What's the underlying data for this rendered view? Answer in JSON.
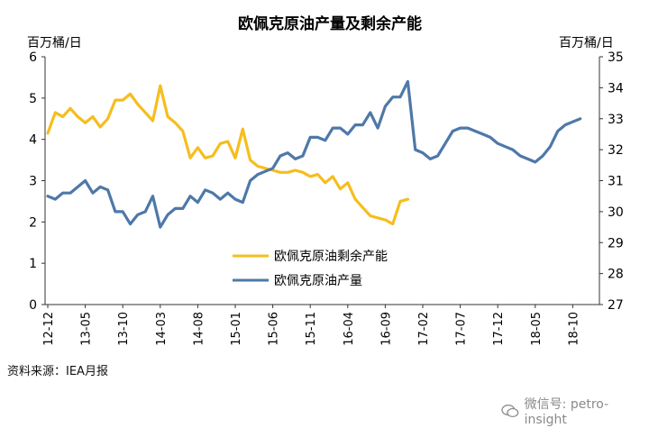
{
  "chart_data": {
    "type": "line",
    "title": "欧佩克原油产量及剩余产能",
    "left_axis_unit": "百万桶/日",
    "right_axis_unit": "百万桶/日",
    "left_ylim": [
      0,
      6
    ],
    "right_ylim": [
      27,
      35
    ],
    "left_ticks": [
      "0",
      "1",
      "2",
      "3",
      "4",
      "5",
      "6"
    ],
    "right_ticks": [
      "27",
      "28",
      "29",
      "30",
      "31",
      "32",
      "33",
      "34",
      "35"
    ],
    "x_tick_labels": [
      "12-12",
      "13-05",
      "13-10",
      "14-03",
      "14-08",
      "15-01",
      "15-06",
      "15-11",
      "16-04",
      "16-09",
      "17-02",
      "17-07",
      "17-12",
      "18-05",
      "18-10"
    ],
    "grid": false,
    "legend_position": "center",
    "series": [
      {
        "name": "欧佩克原油剩余产能",
        "axis": "left",
        "color": "#F5BE1E",
        "start_month_index": 0,
        "values": [
          4.15,
          4.65,
          4.55,
          4.75,
          4.55,
          4.4,
          4.55,
          4.3,
          4.5,
          4.95,
          4.95,
          5.1,
          4.85,
          4.65,
          4.45,
          5.3,
          4.55,
          4.4,
          4.2,
          3.55,
          3.8,
          3.55,
          3.6,
          3.9,
          3.95,
          3.55,
          4.25,
          3.5,
          3.35,
          3.3,
          3.25,
          3.2,
          3.2,
          3.25,
          3.2,
          3.1,
          3.15,
          2.95,
          3.1,
          2.8,
          2.95,
          2.55,
          2.35,
          2.15,
          2.1,
          2.05,
          1.95,
          2.5,
          2.55
        ]
      },
      {
        "name": "欧佩克原油产量",
        "axis": "right",
        "color": "#4E78A8",
        "start_month_index": 0,
        "values": [
          30.5,
          30.4,
          30.6,
          30.6,
          30.8,
          31.0,
          30.6,
          30.8,
          30.7,
          30.0,
          30.0,
          29.6,
          29.9,
          30.0,
          30.5,
          29.5,
          29.9,
          30.1,
          30.1,
          30.5,
          30.3,
          30.7,
          30.6,
          30.4,
          30.6,
          30.4,
          30.3,
          31.0,
          31.2,
          31.3,
          31.4,
          31.8,
          31.9,
          31.7,
          31.8,
          32.4,
          32.4,
          32.3,
          32.7,
          32.7,
          32.5,
          32.8,
          32.8,
          33.2,
          32.7,
          33.4,
          33.7,
          33.7,
          34.2,
          32.0,
          31.9,
          31.7,
          31.8,
          32.2,
          32.6,
          32.7,
          32.7,
          32.6,
          32.5,
          32.4,
          32.2,
          32.1,
          32.0,
          31.8,
          31.7,
          31.6,
          31.8,
          32.1,
          32.6,
          32.8,
          32.9,
          33.0
        ]
      }
    ]
  },
  "source_text": "资料来源：IEA月报",
  "watermark_text": "微信号: petro-insight"
}
